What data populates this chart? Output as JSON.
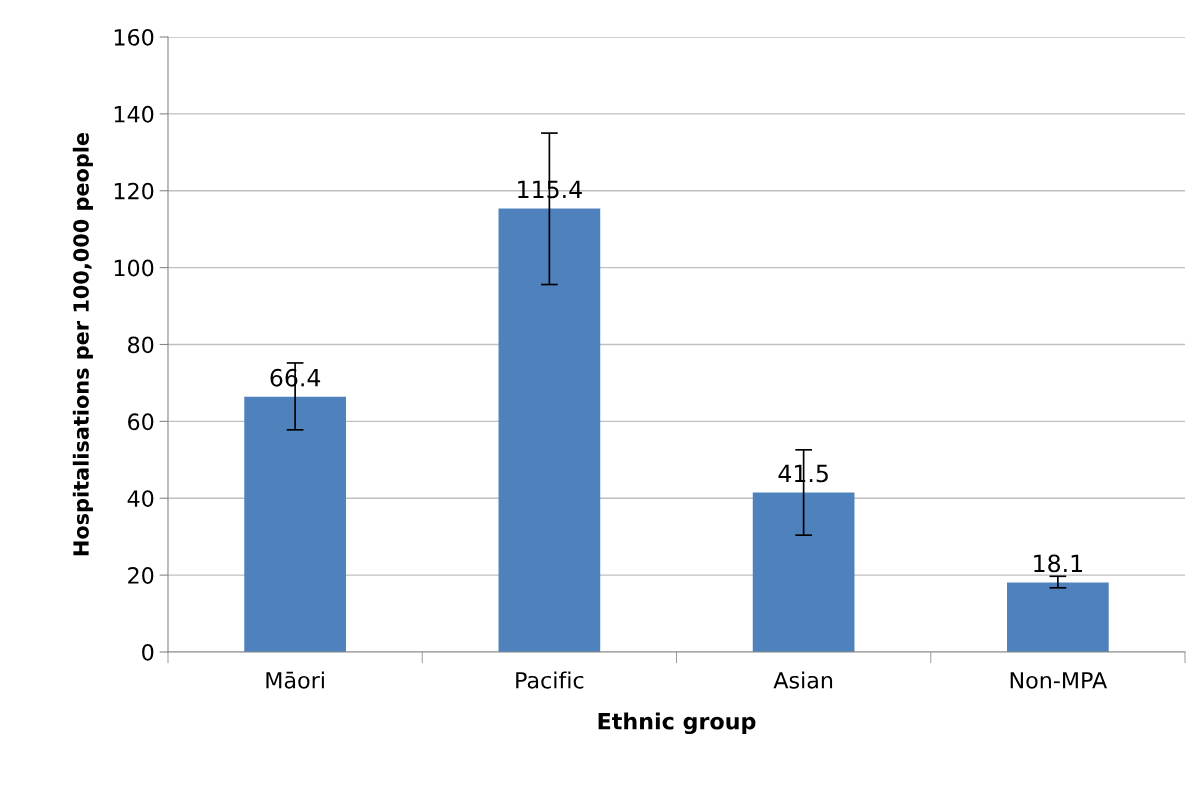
{
  "chart_data": {
    "type": "bar",
    "xlabel": "Ethnic group",
    "ylabel": "Hospitalisations per 100,000 people",
    "categories": [
      "Māori",
      "Pacific",
      "Asian",
      "Non-MPA"
    ],
    "values": [
      66.4,
      115.4,
      41.5,
      18.1
    ],
    "errors": [
      [
        57.8,
        75.2
      ],
      [
        95.6,
        135.0
      ],
      [
        30.4,
        52.6
      ],
      [
        16.7,
        19.7
      ]
    ],
    "color": "#4f81bd",
    "ylim": [
      0,
      160
    ],
    "yticks": [
      0,
      20,
      40,
      60,
      80,
      100,
      120,
      140,
      160
    ],
    "grid": "y",
    "data_labels": true
  }
}
